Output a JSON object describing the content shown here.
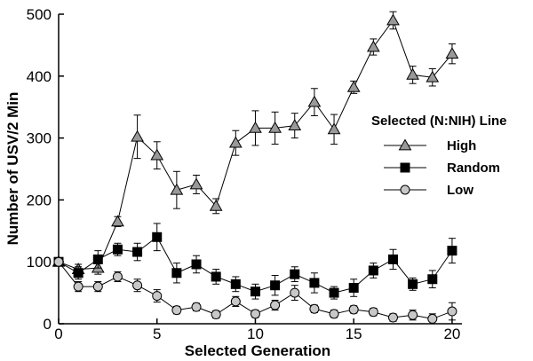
{
  "chart_data": {
    "type": "line",
    "xlabel": "Selected Generation",
    "ylabel": "Number of USV/2 Min",
    "xlim": [
      0,
      20.5
    ],
    "ylim": [
      0,
      500
    ],
    "x_ticks": [
      0,
      5,
      10,
      15,
      20
    ],
    "y_ticks": [
      0,
      100,
      200,
      300,
      400,
      500
    ],
    "x_tick_labels": [
      "0",
      "5",
      "10",
      "15",
      "20"
    ],
    "y_tick_labels": [
      "0",
      "100",
      "200",
      "300",
      "400",
      "500"
    ],
    "grid": false,
    "legend_title": "Selected (N:NIH) Line",
    "legend_position": "right",
    "x": [
      0,
      1,
      2,
      3,
      4,
      5,
      6,
      7,
      8,
      9,
      10,
      11,
      12,
      13,
      14,
      15,
      16,
      17,
      18,
      19,
      20
    ],
    "series": [
      {
        "name": "High",
        "marker": "triangle",
        "color": "#999999",
        "values": [
          100,
          88,
          90,
          165,
          302,
          272,
          216,
          225,
          190,
          292,
          316,
          316,
          320,
          358,
          314,
          382,
          447,
          490,
          402,
          398,
          436
        ],
        "errors": [
          6,
          8,
          10,
          8,
          35,
          22,
          30,
          15,
          12,
          20,
          28,
          26,
          20,
          22,
          24,
          10,
          13,
          14,
          14,
          14,
          16
        ]
      },
      {
        "name": "Random",
        "marker": "square",
        "color": "#000000",
        "values": [
          100,
          82,
          104,
          120,
          116,
          140,
          82,
          96,
          76,
          64,
          52,
          62,
          80,
          66,
          50,
          58,
          86,
          104,
          64,
          72,
          118
        ],
        "errors": [
          5,
          10,
          14,
          10,
          14,
          22,
          16,
          14,
          12,
          12,
          12,
          16,
          12,
          16,
          10,
          14,
          12,
          16,
          10,
          14,
          20
        ]
      },
      {
        "name": "Low",
        "marker": "circle",
        "color": "#c8c8c8",
        "values": [
          100,
          60,
          60,
          76,
          62,
          45,
          22,
          27,
          15,
          36,
          16,
          30,
          50,
          24,
          16,
          23,
          19,
          10,
          14,
          8,
          20
        ],
        "errors": [
          5,
          8,
          8,
          8,
          10,
          10,
          6,
          6,
          6,
          8,
          6,
          8,
          12,
          6,
          6,
          6,
          6,
          6,
          8,
          8,
          14
        ]
      }
    ]
  }
}
